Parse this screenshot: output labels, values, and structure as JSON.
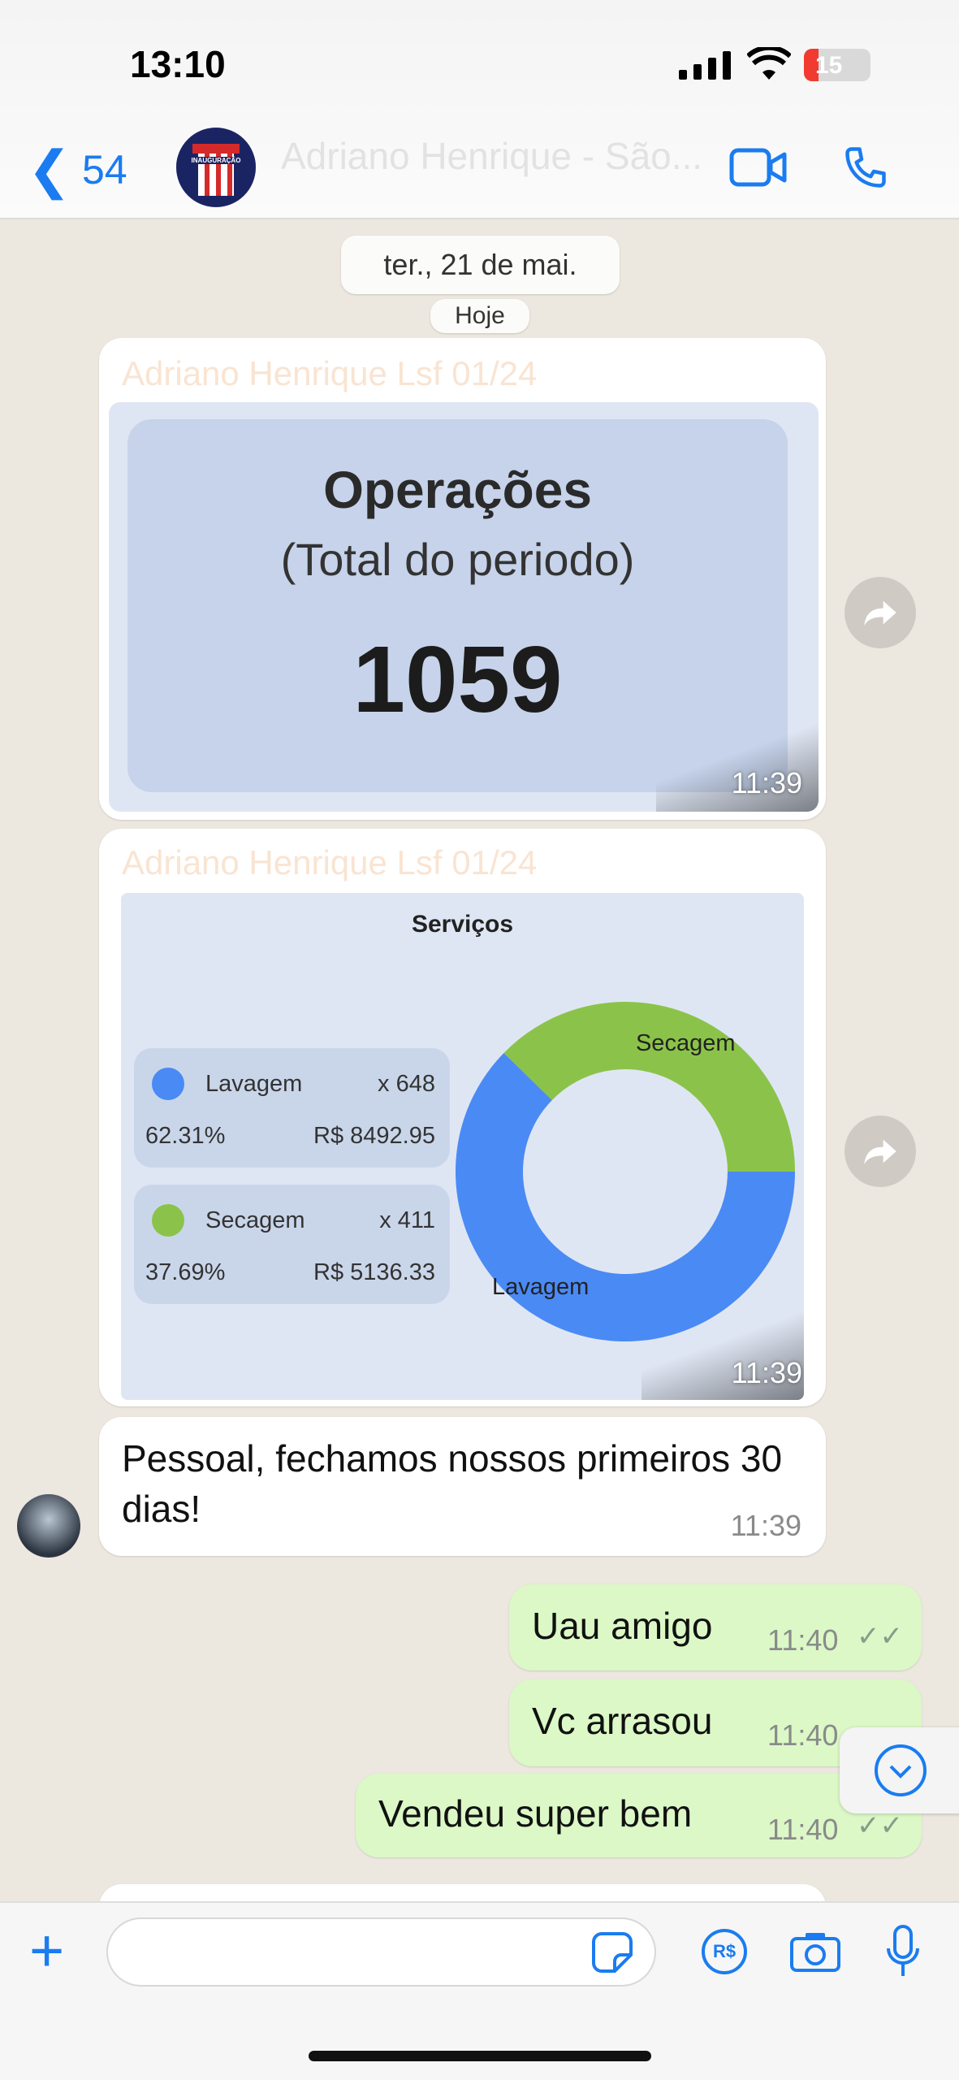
{
  "status_bar": {
    "time": "13:10",
    "battery": "15"
  },
  "header": {
    "back_count": "54",
    "title": "Adriano Henrique - São...",
    "avatar_text": "INAUGURAÇÃO"
  },
  "date_pill": "ter., 21 de mai.",
  "hidden_pill": "Hoje",
  "messages": [
    {
      "sender": "Adriano Henrique Lsf 01/24",
      "card": {
        "title": "Operações",
        "subtitle": "(Total do periodo)",
        "value": "1059"
      },
      "time": "11:39"
    },
    {
      "sender": "Adriano Henrique Lsf 01/24",
      "time": "11:39"
    },
    {
      "text": "Pessoal, fechamos nossos primeiros 30 dias!",
      "time": "11:39"
    },
    {
      "text": "Uau amigo",
      "time": "11:40",
      "outgoing": true
    },
    {
      "text": "Vc arrasou",
      "time": "11:40",
      "outgoing": true
    },
    {
      "text": "Vendeu super bem",
      "time": "11:40",
      "outgoing": true
    }
  ],
  "chart_data": {
    "type": "pie",
    "title": "Serviços",
    "donut": true,
    "categories": [
      "Lavagem",
      "Secagem"
    ],
    "counts": [
      "x 648",
      "x 411"
    ],
    "percents": [
      "62.31%",
      "37.69%"
    ],
    "revenue": [
      "R$ 8492.95",
      "R$ 5136.33"
    ],
    "values": [
      62.31,
      37.69
    ],
    "colors": [
      "#4a8af4",
      "#8bc34a"
    ]
  },
  "input": {
    "placeholder": ""
  }
}
